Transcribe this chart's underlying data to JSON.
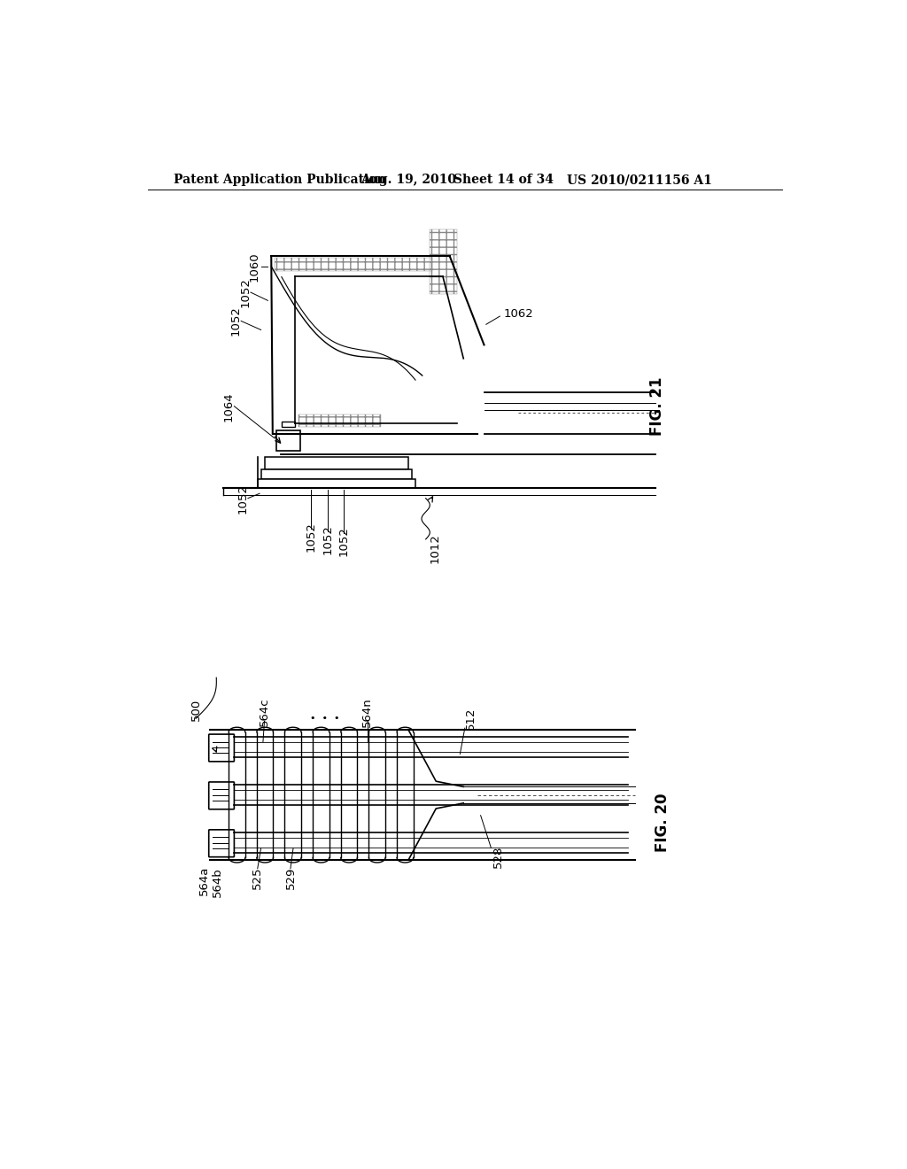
{
  "background_color": "#ffffff",
  "header_text": "Patent Application Publication",
  "header_date": "Aug. 19, 2010",
  "header_sheet": "Sheet 14 of 34",
  "header_patent": "US 2010/0211156 A1",
  "fig21_label": "FIG. 21",
  "fig20_label": "FIG. 20"
}
